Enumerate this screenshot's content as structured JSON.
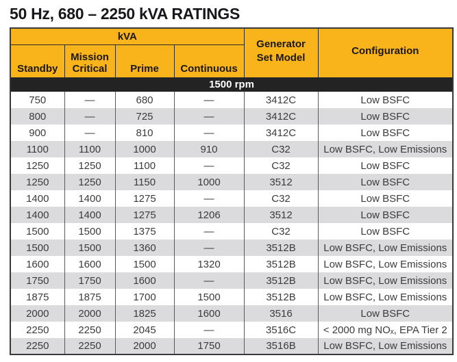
{
  "page_title": "50 Hz, 680 – 2250 kVA RATINGS",
  "table": {
    "group_header": "kVA",
    "columns": [
      "Standby",
      "Mission Critical",
      "Prime",
      "Continuous"
    ],
    "generator_header": {
      "line1": "Generator",
      "line2": "Set Model"
    },
    "configuration_header": "Configuration",
    "band_label": "1500 rpm",
    "rows": [
      {
        "standby": "750",
        "mission_critical": "—",
        "prime": "680",
        "continuous": "—",
        "model": "3412C",
        "configuration": "Low BSFC"
      },
      {
        "standby": "800",
        "mission_critical": "—",
        "prime": "725",
        "continuous": "—",
        "model": "3412C",
        "configuration": "Low BSFC"
      },
      {
        "standby": "900",
        "mission_critical": "—",
        "prime": "810",
        "continuous": "—",
        "model": "3412C",
        "configuration": "Low BSFC"
      },
      {
        "standby": "1100",
        "mission_critical": "1100",
        "prime": "1000",
        "continuous": "910",
        "model": "C32",
        "configuration": "Low BSFC, Low Emissions"
      },
      {
        "standby": "1250",
        "mission_critical": "1250",
        "prime": "1100",
        "continuous": "—",
        "model": "C32",
        "configuration": "Low BSFC"
      },
      {
        "standby": "1250",
        "mission_critical": "1250",
        "prime": "1150",
        "continuous": "1000",
        "model": "3512",
        "configuration": "Low BSFC"
      },
      {
        "standby": "1400",
        "mission_critical": "1400",
        "prime": "1275",
        "continuous": "—",
        "model": "C32",
        "configuration": "Low BSFC"
      },
      {
        "standby": "1400",
        "mission_critical": "1400",
        "prime": "1275",
        "continuous": "1206",
        "model": "3512",
        "configuration": "Low BSFC"
      },
      {
        "standby": "1500",
        "mission_critical": "1500",
        "prime": "1375",
        "continuous": "—",
        "model": "C32",
        "configuration": "Low BSFC"
      },
      {
        "standby": "1500",
        "mission_critical": "1500",
        "prime": "1360",
        "continuous": "—",
        "model": "3512B",
        "configuration": "Low BSFC, Low Emissions"
      },
      {
        "standby": "1600",
        "mission_critical": "1600",
        "prime": "1500",
        "continuous": "1320",
        "model": "3512B",
        "configuration": "Low BSFC, Low Emissions"
      },
      {
        "standby": "1750",
        "mission_critical": "1750",
        "prime": "1600",
        "continuous": "—",
        "model": "3512B",
        "configuration": "Low BSFC, Low Emissions"
      },
      {
        "standby": "1875",
        "mission_critical": "1875",
        "prime": "1700",
        "continuous": "1500",
        "model": "3512B",
        "configuration": "Low BSFC, Low Emissions"
      },
      {
        "standby": "2000",
        "mission_critical": "2000",
        "prime": "1825",
        "continuous": "1600",
        "model": "3516",
        "configuration": "Low BSFC"
      },
      {
        "standby": "2250",
        "mission_critical": "2250",
        "prime": "2045",
        "continuous": "—",
        "model": "3516C",
        "configuration": "< 2000 mg NOₓ, EPA Tier 2"
      },
      {
        "standby": "2250",
        "mission_critical": "2250",
        "prime": "2000",
        "continuous": "1750",
        "model": "3516B",
        "configuration": "Low BSFC, Low Emissions"
      }
    ]
  },
  "colors": {
    "header_yellow": "#F8B41A",
    "band_black": "#232323",
    "row_alt_gray": "#DBDBDE",
    "body_text": "#3B3B3F",
    "header_text": "#1B1713"
  }
}
